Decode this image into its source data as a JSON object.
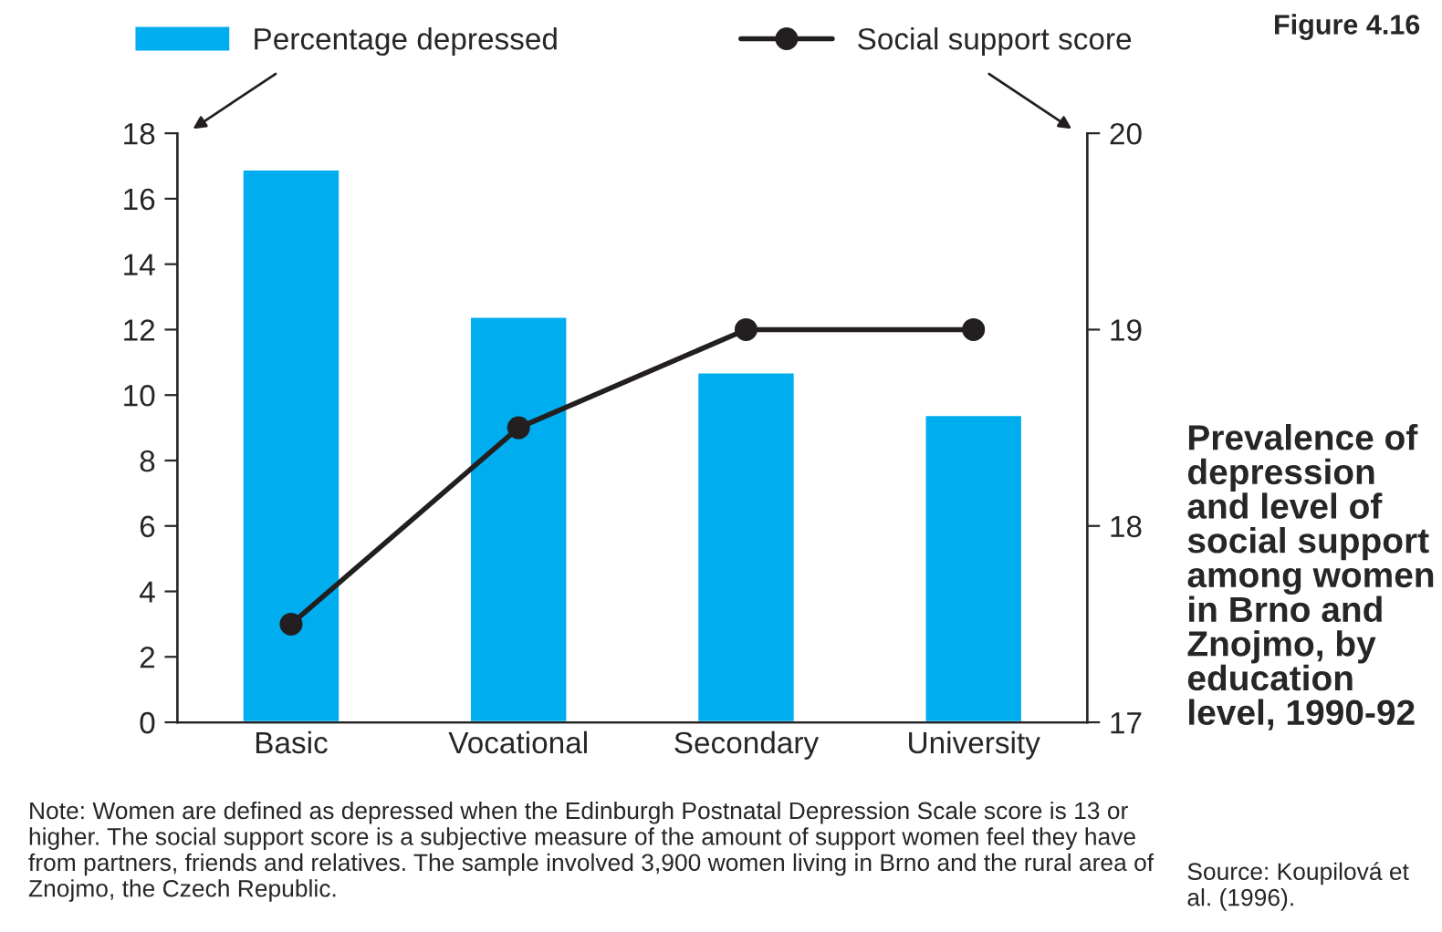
{
  "chart_data": {
    "type": "bar",
    "title": "Prevalence of depression and level of social support among women in Brno and Znojmo, by education level, 1990-92",
    "categories": [
      "Basic",
      "Vocational",
      "Secondary",
      "University"
    ],
    "series": [
      {
        "name": "Percentage depressed",
        "color": "#00aeef",
        "values": [
          16.9,
          12.4,
          10.7,
          9.4
        ]
      },
      {
        "name": "Social support score",
        "type": "line",
        "axis": "y2",
        "color": "#231f20",
        "values": [
          17.5,
          18.5,
          19,
          19
        ]
      }
    ],
    "ylim": [
      0,
      18
    ],
    "yticks": [
      0,
      2,
      4,
      6,
      8,
      10,
      12,
      14,
      16,
      18
    ],
    "y2lim": [
      17,
      20
    ],
    "y2ticks": [
      17,
      18,
      19,
      20
    ],
    "marker": "circle",
    "line_style": "solid",
    "grid": false,
    "legend": "top",
    "annotations": [
      "Figure 4.16",
      "Source: Koupilová et al. (1996).",
      "Note: Women are defined as depressed when the Edinburgh Postnatal Depression Scale score is 13 or higher. The social support score is a subjective measure of the amount of support women feel they have from partners, friends and relatives. The sample involved 3,900 women living in Brno and the rural area of Znojmo, the Czech Republic."
    ]
  }
}
